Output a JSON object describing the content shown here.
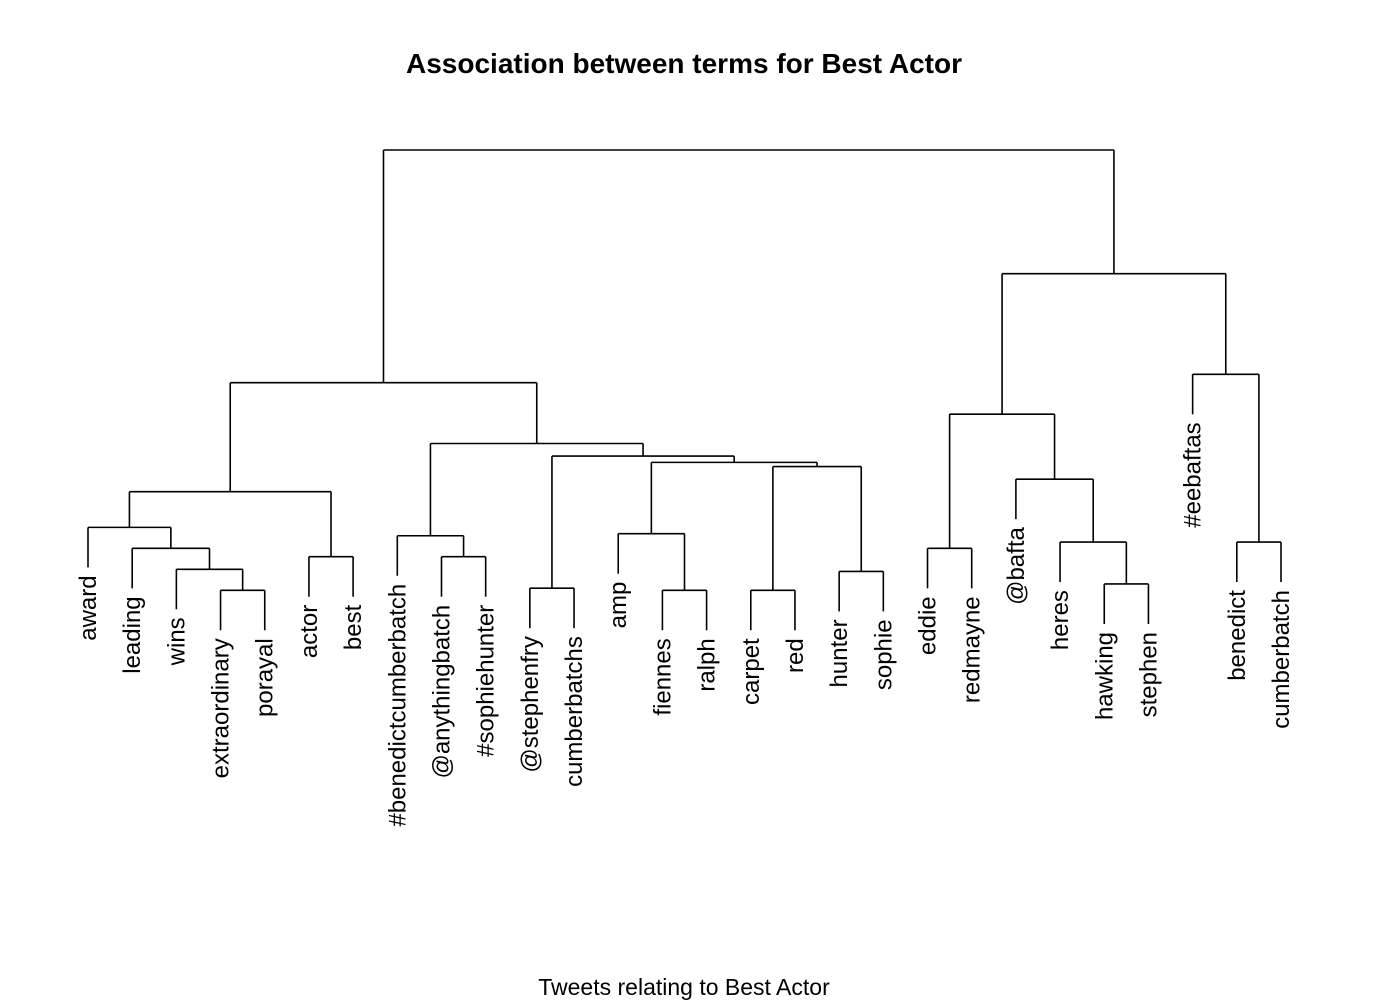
{
  "title": "Association between terms for Best Actor",
  "xlabel": "Tweets relating to Best Actor",
  "leaves": [
    "award",
    "leading",
    "wins",
    "extraordinary",
    "porayal",
    "actor",
    "best",
    "#benedictcumberbatch",
    "@anythingbatch",
    "#sophiehunter",
    "@stephenfry",
    "cumberbatchs",
    "amp",
    "fiennes",
    "ralph",
    "carpet",
    "red",
    "hunter",
    "sophie",
    "eddie",
    "redmayne",
    "@bafta",
    "heres",
    "hawking",
    "stephen",
    "#eebaftas",
    "benedict",
    "cumberbatch"
  ],
  "dendrogram": {
    "merge_order_note": "",
    "merges": [
      {
        "left": "extraordinary",
        "right": "porayal",
        "height": 0.18
      },
      {
        "left": "wins",
        "right": "m1",
        "height": 0.28
      },
      {
        "left": "leading",
        "right": "m2",
        "height": 0.38
      },
      {
        "left": "award",
        "right": "m3",
        "height": 0.48
      },
      {
        "left": "actor",
        "right": "best",
        "height": 0.34
      },
      {
        "left": "m4",
        "right": "m5",
        "height": 0.65
      },
      {
        "left": "@anythingbatch",
        "right": "#sophiehunter",
        "height": 0.34
      },
      {
        "left": "#benedictcumberbatch",
        "right": "m7",
        "height": 0.44
      },
      {
        "left": "@stephenfry",
        "right": "cumberbatchs",
        "height": 0.19
      },
      {
        "left": "fiennes",
        "right": "ralph",
        "height": 0.18
      },
      {
        "left": "amp",
        "right": "m10",
        "height": 0.45
      },
      {
        "left": "carpet",
        "right": "red",
        "height": 0.18
      },
      {
        "left": "hunter",
        "right": "sophie",
        "height": 0.27
      },
      {
        "left": "m12",
        "right": "m13",
        "height": 0.77
      },
      {
        "left": "m11",
        "right": "m14",
        "height": 0.79
      },
      {
        "left": "m9",
        "right": "m15",
        "height": 0.82
      },
      {
        "left": "m8",
        "right": "m16",
        "height": 0.88
      },
      {
        "left": "m6",
        "right": "m17",
        "height": 1.17
      },
      {
        "left": "eddie",
        "right": "redmayne",
        "height": 0.38
      },
      {
        "left": "hawking",
        "right": "stephen",
        "height": 0.21
      },
      {
        "left": "heres",
        "right": "m20",
        "height": 0.41
      },
      {
        "left": "@bafta",
        "right": "m21",
        "height": 0.71
      },
      {
        "left": "m19",
        "right": "m22",
        "height": 1.02
      },
      {
        "left": "benedict",
        "right": "cumberbatch",
        "height": 0.41
      },
      {
        "left": "#eebaftas",
        "right": "m24",
        "height": 1.21
      },
      {
        "left": "m23",
        "right": "m25",
        "height": 1.69
      },
      {
        "left": "m18",
        "right": "m26",
        "height": 2.28
      }
    ]
  }
}
